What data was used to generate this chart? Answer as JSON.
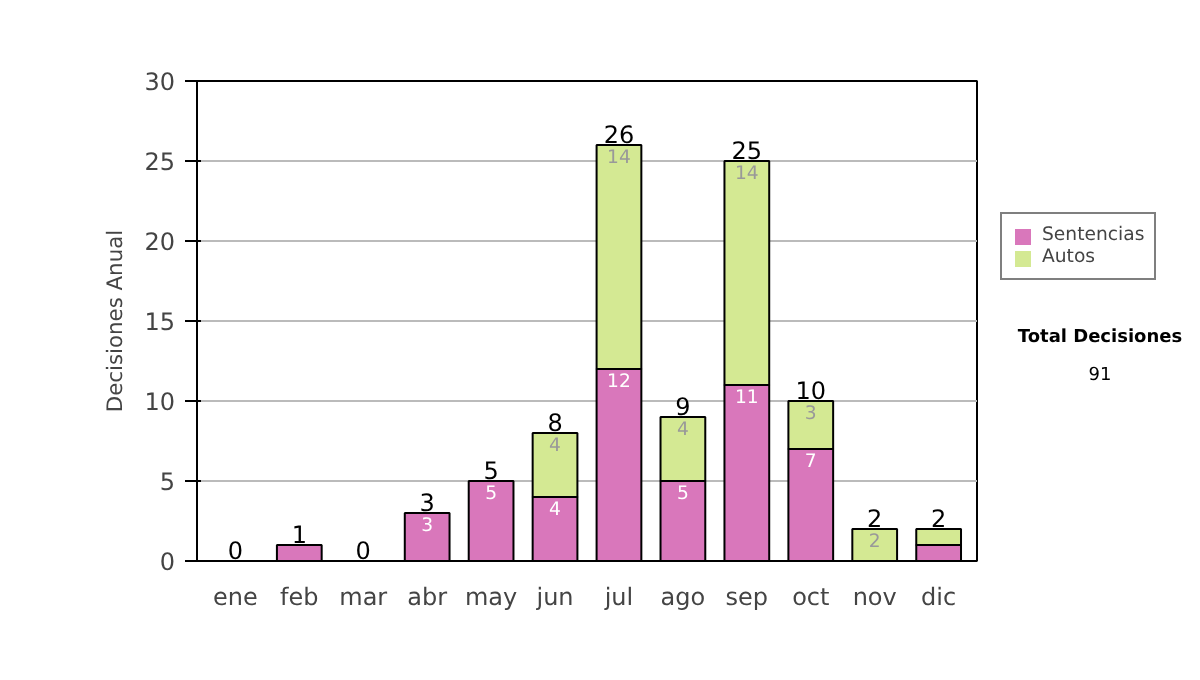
{
  "chart_data": {
    "type": "bar",
    "stacked": true,
    "ylabel": "Decisiones Anual",
    "categories": [
      "ene",
      "feb",
      "mar",
      "abr",
      "may",
      "jun",
      "jul",
      "ago",
      "sep",
      "oct",
      "nov",
      "dic"
    ],
    "series": [
      {
        "name": "Sentencias",
        "color": "#d977bb",
        "values": [
          0,
          1,
          0,
          3,
          5,
          4,
          12,
          5,
          11,
          7,
          0,
          1
        ],
        "value_labels": [
          null,
          null,
          null,
          "3",
          "5",
          "4",
          "12",
          "5",
          "11",
          "7",
          null,
          null
        ]
      },
      {
        "name": "Autos",
        "color": "#d4e993",
        "values": [
          0,
          0,
          0,
          0,
          0,
          4,
          14,
          4,
          14,
          3,
          2,
          1
        ],
        "value_labels": [
          null,
          null,
          null,
          null,
          null,
          "4",
          "14",
          "4",
          "14",
          "3",
          "2",
          null
        ]
      }
    ],
    "totals": [
      "0",
      "1",
      "0",
      "3",
      "5",
      "8",
      "26",
      "9",
      "25",
      "10",
      "2",
      "2"
    ],
    "ylim": [
      0,
      30
    ],
    "yticks": [
      0,
      5,
      10,
      15,
      20,
      25,
      30
    ],
    "grid": "y",
    "legend": "right",
    "annotations": [
      "Total Decisiones",
      "91"
    ]
  }
}
